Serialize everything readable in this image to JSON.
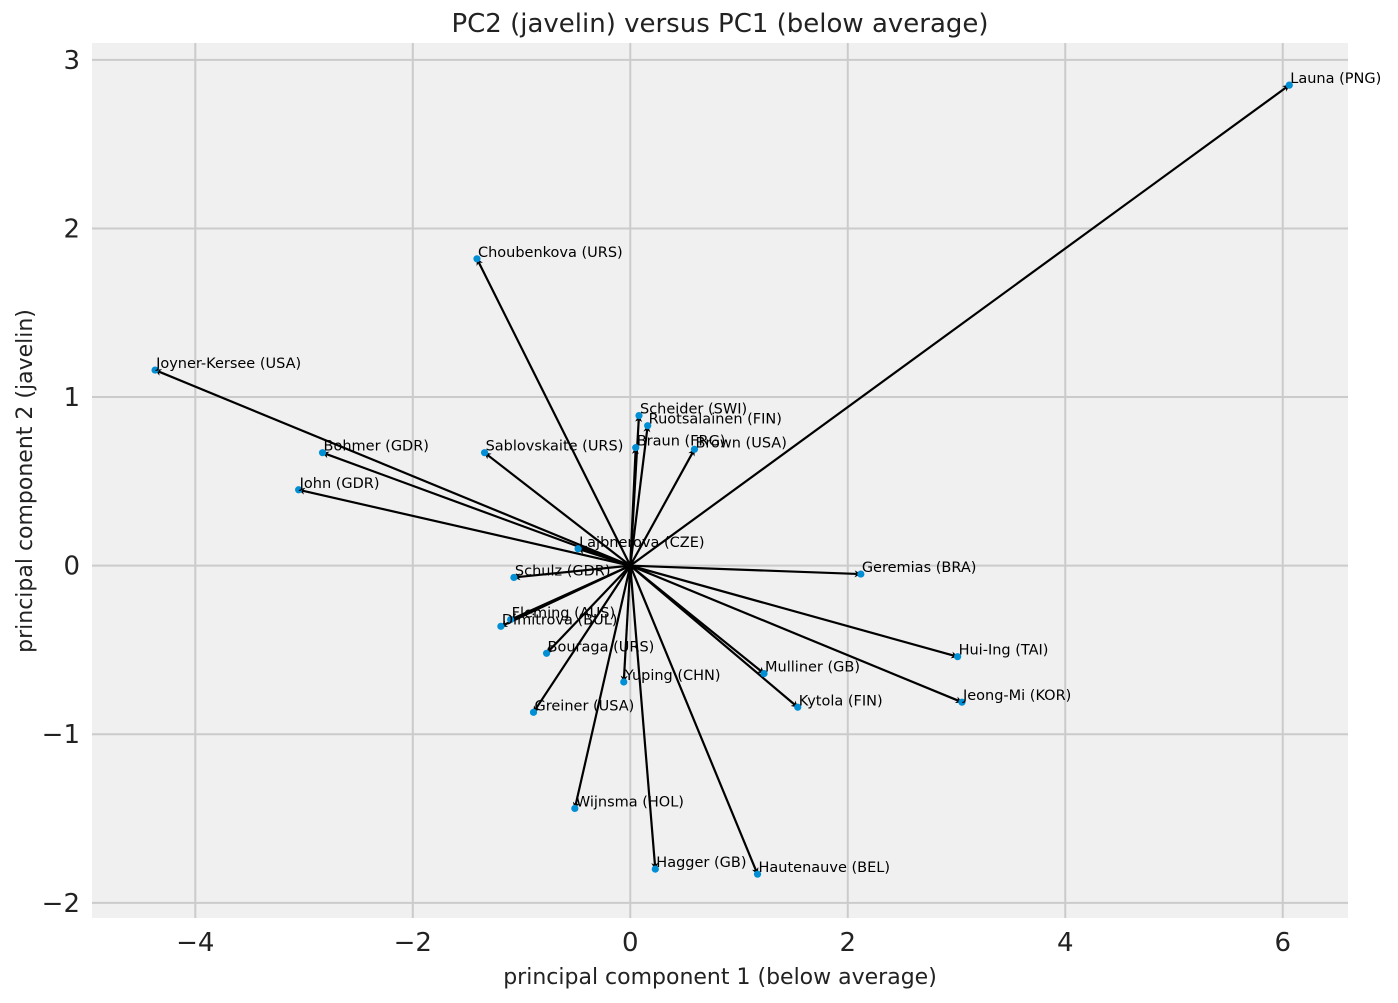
{
  "chart_data": {
    "type": "scatter",
    "title": "PC2 (javelin) versus PC1 (below average)",
    "xlabel": "principal component 1 (below average)",
    "ylabel": "principal component 2 (javelin)",
    "xlim": [
      -4.95,
      6.6
    ],
    "ylim": [
      -2.09,
      3.1
    ],
    "xticks": [
      -4,
      -2,
      0,
      2,
      4,
      6
    ],
    "yticks": [
      -2,
      -1,
      0,
      1,
      2,
      3
    ],
    "grid": true,
    "colors": {
      "background": "#f0f0f0",
      "grid": "#cbcbcb",
      "point": "#008fd5",
      "arrow": "#000000"
    },
    "arrow_origin": [
      0,
      0
    ],
    "points": [
      {
        "label": "Launa (PNG)",
        "x": 6.06,
        "y": 2.85
      },
      {
        "label": "Choubenkova (URS)",
        "x": -1.41,
        "y": 1.82
      },
      {
        "label": "Joyner-Kersee (USA)",
        "x": -4.37,
        "y": 1.16
      },
      {
        "label": "Scheider (SWI)",
        "x": 0.08,
        "y": 0.89
      },
      {
        "label": "Ruotsalainen (FIN)",
        "x": 0.16,
        "y": 0.83
      },
      {
        "label": "Braun (FRG)",
        "x": 0.05,
        "y": 0.7
      },
      {
        "label": "Brown (USA)",
        "x": 0.59,
        "y": 0.69
      },
      {
        "label": "Bohmer (GDR)",
        "x": -2.83,
        "y": 0.67
      },
      {
        "label": "Sablovskaite (URS)",
        "x": -1.34,
        "y": 0.67
      },
      {
        "label": "John (GDR)",
        "x": -3.05,
        "y": 0.45
      },
      {
        "label": "Lajbnerova (CZE)",
        "x": -0.48,
        "y": 0.1
      },
      {
        "label": "Geremias (BRA)",
        "x": 2.12,
        "y": -0.05
      },
      {
        "label": "Schulz (GDR)",
        "x": -1.07,
        "y": -0.07
      },
      {
        "label": "Fleming (AUS)",
        "x": -1.1,
        "y": -0.32
      },
      {
        "label": "Dimitrova (BUL)",
        "x": -1.19,
        "y": -0.36
      },
      {
        "label": "Bouraga (URS)",
        "x": -0.77,
        "y": -0.52
      },
      {
        "label": "Hui-Ing (TAI)",
        "x": 3.01,
        "y": -0.54
      },
      {
        "label": "Mulliner (GB)",
        "x": 1.23,
        "y": -0.64
      },
      {
        "label": "Yuping (CHN)",
        "x": -0.06,
        "y": -0.69
      },
      {
        "label": "Jeong-Mi (KOR)",
        "x": 3.05,
        "y": -0.81
      },
      {
        "label": "Kytola (FIN)",
        "x": 1.54,
        "y": -0.84
      },
      {
        "label": "Greiner (USA)",
        "x": -0.89,
        "y": -0.87
      },
      {
        "label": "Wijnsma (HOL)",
        "x": -0.51,
        "y": -1.44
      },
      {
        "label": "Hagger (GB)",
        "x": 0.23,
        "y": -1.8
      },
      {
        "label": "Hautenauve (BEL)",
        "x": 1.17,
        "y": -1.83
      }
    ]
  }
}
